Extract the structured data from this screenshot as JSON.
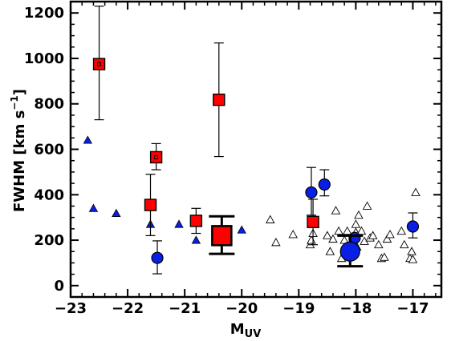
{
  "chart_data": {
    "type": "scatter",
    "xlabel": "M",
    "xlabel_sub": "UV",
    "ylabel": "FWHM [km s",
    "ylabel_sup": "−1",
    "ylabel_end": "]",
    "xlim": [
      -23.0,
      -16.5
    ],
    "ylim": [
      -50,
      1250
    ],
    "x_ticks": [
      -23,
      -22,
      -21,
      -20,
      -19,
      -18,
      -17
    ],
    "x_tick_labels": [
      "−23",
      "−22",
      "−21",
      "−20",
      "−19",
      "−18",
      "−17"
    ],
    "y_ticks": [
      0,
      200,
      400,
      600,
      800,
      1000,
      1200
    ],
    "y_tick_labels": [
      "0",
      "200",
      "400",
      "600",
      "800",
      "1000",
      "1200"
    ],
    "grid": false,
    "legend": "none",
    "series": [
      {
        "marker": "triangle-open",
        "color": "#ffffff",
        "edge": "#000000",
        "points": [
          {
            "x": -19.5,
            "y": 290
          },
          {
            "x": -19.4,
            "y": 190
          },
          {
            "x": -19.1,
            "y": 225
          },
          {
            "x": -18.8,
            "y": 180
          },
          {
            "x": -18.78,
            "y": 200
          },
          {
            "x": -18.75,
            "y": 230
          },
          {
            "x": -18.5,
            "y": 220
          },
          {
            "x": -18.45,
            "y": 150
          },
          {
            "x": -18.4,
            "y": 205
          },
          {
            "x": -18.35,
            "y": 330
          },
          {
            "x": -18.3,
            "y": 240
          },
          {
            "x": -18.25,
            "y": 120
          },
          {
            "x": -18.2,
            "y": 200
          },
          {
            "x": -18.15,
            "y": 240
          },
          {
            "x": -18.1,
            "y": 170
          },
          {
            "x": -18.05,
            "y": 215
          },
          {
            "x": -18.0,
            "y": 235
          },
          {
            "x": -17.95,
            "y": 310
          },
          {
            "x": -17.9,
            "y": 240
          },
          {
            "x": -17.85,
            "y": 195
          },
          {
            "x": -17.8,
            "y": 350
          },
          {
            "x": -17.75,
            "y": 210
          },
          {
            "x": -17.7,
            "y": 220
          },
          {
            "x": -17.6,
            "y": 180
          },
          {
            "x": -17.55,
            "y": 120
          },
          {
            "x": -17.5,
            "y": 125
          },
          {
            "x": -17.45,
            "y": 205
          },
          {
            "x": -17.4,
            "y": 225
          },
          {
            "x": -17.2,
            "y": 240
          },
          {
            "x": -17.15,
            "y": 180
          },
          {
            "x": -17.05,
            "y": 120
          },
          {
            "x": -17.02,
            "y": 150
          },
          {
            "x": -17.0,
            "y": 115
          },
          {
            "x": -16.95,
            "y": 410
          },
          {
            "x": -18.0,
            "y": 270
          },
          {
            "x": -17.98,
            "y": 170
          }
        ]
      },
      {
        "marker": "triangle",
        "color": "#0a1fe6",
        "edge": "#000000",
        "points": [
          {
            "x": -22.7,
            "y": 640
          },
          {
            "x": -22.6,
            "y": 340
          },
          {
            "x": -22.2,
            "y": 318
          },
          {
            "x": -21.6,
            "y": 270
          },
          {
            "x": -21.1,
            "y": 270
          },
          {
            "x": -20.8,
            "y": 200
          },
          {
            "x": -20.0,
            "y": 245
          }
        ]
      },
      {
        "marker": "circle",
        "color": "#0a1fe6",
        "edge": "#000000",
        "points": [
          {
            "x": -21.48,
            "y": 122,
            "yerr_lo": 70,
            "yerr_hi": 75,
            "size": 7
          },
          {
            "x": -18.78,
            "y": 410,
            "yerr_lo": 100,
            "yerr_hi": 110,
            "size": 7
          },
          {
            "x": -18.55,
            "y": 445,
            "yerr_lo": 50,
            "yerr_hi": 65,
            "size": 7
          },
          {
            "x": -18.02,
            "y": 210,
            "yerr_lo": 0,
            "yerr_hi": 0,
            "size": 7
          },
          {
            "x": -17.0,
            "y": 260,
            "yerr_lo": 50,
            "yerr_hi": 60,
            "size": 7
          },
          {
            "x": -18.1,
            "y": 150,
            "yerr_lo": 65,
            "yerr_hi": 70,
            "size": 12
          }
        ]
      },
      {
        "marker": "square",
        "color": "#ff0000",
        "edge": "#000000",
        "points": [
          {
            "x": -22.5,
            "y": 975,
            "yerr_lo": 245,
            "yerr_hi": 255,
            "size": 7,
            "dot": true
          },
          {
            "x": -21.5,
            "y": 565,
            "yerr_lo": 55,
            "yerr_hi": 60,
            "size": 7,
            "dot": true
          },
          {
            "x": -21.6,
            "y": 355,
            "yerr_lo": 135,
            "yerr_hi": 135,
            "size": 7,
            "dot": false
          },
          {
            "x": -20.4,
            "y": 818,
            "yerr_lo": 250,
            "yerr_hi": 250,
            "size": 7,
            "dot": false
          },
          {
            "x": -20.8,
            "y": 285,
            "yerr_lo": 55,
            "yerr_hi": 55,
            "size": 7,
            "dot": false
          },
          {
            "x": -18.75,
            "y": 280,
            "yerr_lo": 100,
            "yerr_hi": 100,
            "size": 7,
            "dot": false
          },
          {
            "x": -20.35,
            "y": 220,
            "yerr_lo": 80,
            "yerr_hi": 85,
            "size": 12,
            "dot": false
          }
        ]
      }
    ]
  }
}
